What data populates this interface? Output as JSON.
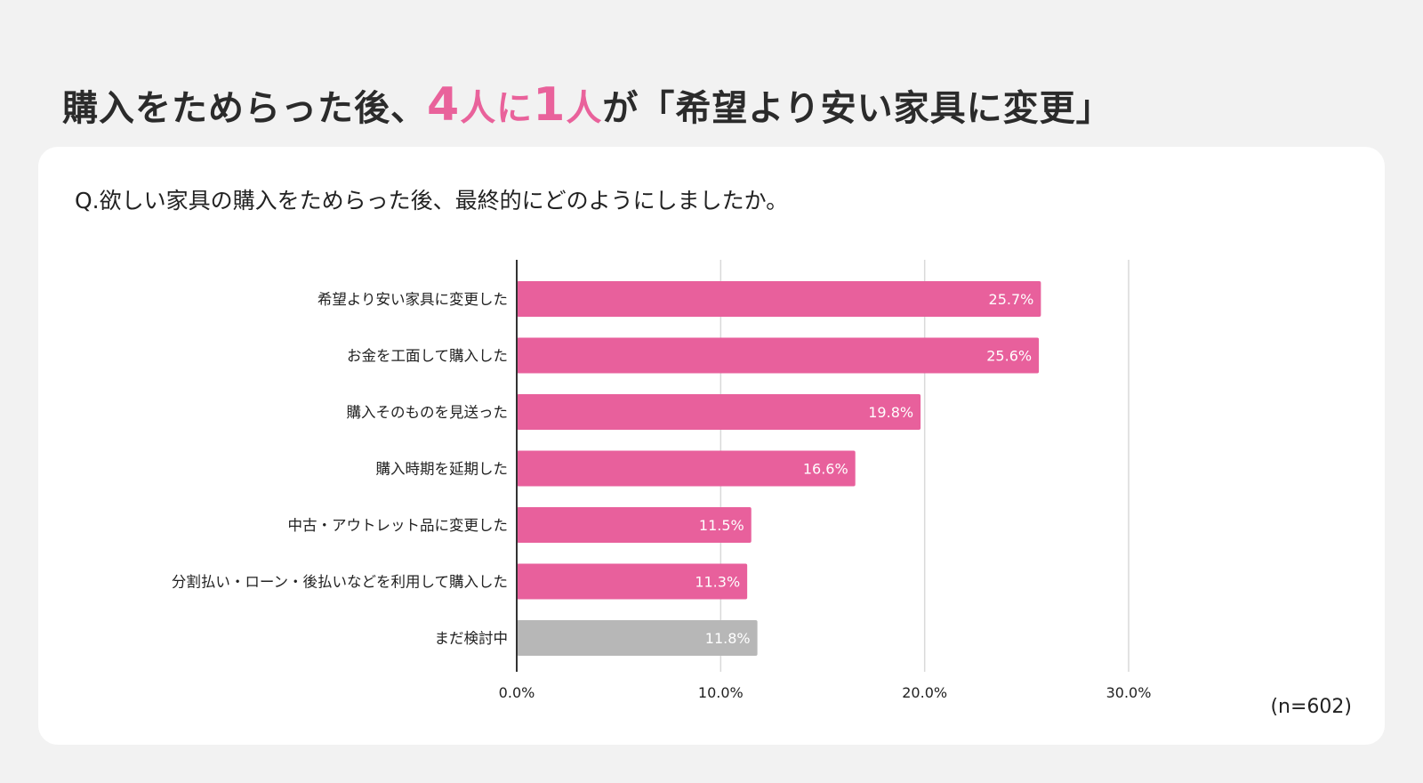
{
  "headline": {
    "part1": "購入をためらった後、",
    "num1": "4",
    "unit1": "人に",
    "num2": "1",
    "unit2": "人",
    "part2": "が「希望より安い家具に変更」"
  },
  "question": "Q.欲しい家具の購入をためらった後、最終的にどのようにしましたか。",
  "sample_note": "(n=602)",
  "colors": {
    "accent": "#e9629b",
    "bar_pink": "#e8609c",
    "bar_gray": "#b7b7b7",
    "grid": "#d9d9d9",
    "axis": "#333333"
  },
  "chart_data": {
    "type": "bar",
    "orientation": "horizontal",
    "categories": [
      "希望より安い家具に変更した",
      "お金を工面して購入した",
      "購入そのものを見送った",
      "購入時期を延期した",
      "中古・アウトレット品に変更した",
      "分割払い・ローン・後払いなどを利用して購入した",
      "まだ検討中"
    ],
    "values": [
      25.7,
      25.6,
      19.8,
      16.6,
      11.5,
      11.3,
      11.8
    ],
    "value_labels": [
      "25.7%",
      "25.6%",
      "19.8%",
      "16.6%",
      "11.5%",
      "11.3%",
      "11.8%"
    ],
    "bar_colors": [
      "#e8609c",
      "#e8609c",
      "#e8609c",
      "#e8609c",
      "#e8609c",
      "#e8609c",
      "#b7b7b7"
    ],
    "xlim": [
      0,
      30
    ],
    "xticks": [
      0,
      10,
      20,
      30
    ],
    "xtick_labels": [
      "0.0%",
      "10.0%",
      "20.0%",
      "30.0%"
    ],
    "grid": true
  }
}
